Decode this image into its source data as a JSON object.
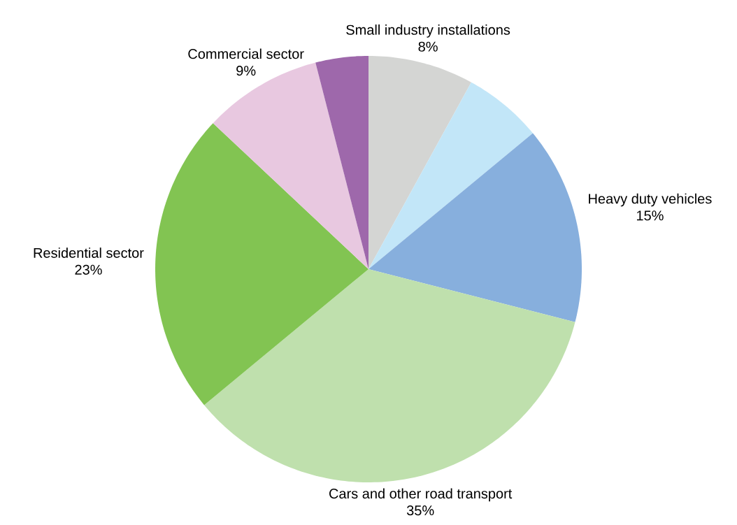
{
  "chart_data": {
    "type": "pie",
    "categories": [
      "Small industry installations",
      null,
      "Heavy duty vehicles",
      "Cars and other road transport",
      "Residential sector",
      "Commercial sector",
      null
    ],
    "values": [
      8,
      6,
      15,
      35,
      23,
      9,
      4
    ],
    "value_labels": [
      "8%",
      null,
      "15%",
      "35%",
      "23%",
      "9%",
      null
    ],
    "colors": [
      "#d4d5d3",
      "#c2e6f8",
      "#87afdd",
      "#bfe0ad",
      "#82c452",
      "#e8c8e0",
      "#9e68ab"
    ]
  }
}
